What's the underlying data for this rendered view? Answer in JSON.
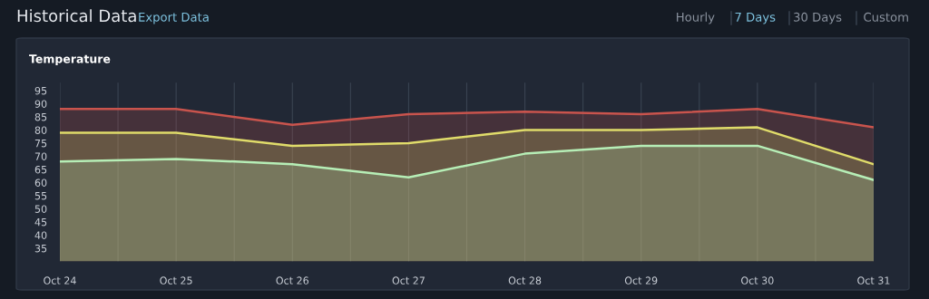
{
  "chart_data": {
    "type": "area",
    "title": "Historical Data",
    "subtitle": "Temperature",
    "annotations": [
      "Export Data",
      "Hourly",
      "7 Days",
      "30 Days",
      "Custom"
    ],
    "categories": [
      "Oct 24",
      "Oct 25",
      "Oct 26",
      "Oct 27",
      "Oct 28",
      "Oct 29",
      "Oct 30",
      "Oct 31"
    ],
    "series": [
      {
        "color": "#c9544d",
        "values": [
          88,
          88,
          82,
          86,
          87,
          86,
          88,
          81
        ]
      },
      {
        "color": "#e0dc6a",
        "values": [
          79,
          79,
          74,
          75,
          80,
          80,
          81,
          67
        ]
      },
      {
        "color": "#b6eeb6",
        "values": [
          68,
          69,
          67,
          62,
          71,
          74,
          74,
          61
        ]
      }
    ],
    "ylim": [
      30,
      98
    ],
    "yticks": [
      35,
      40,
      45,
      50,
      55,
      60,
      65,
      70,
      75,
      80,
      85,
      90,
      95
    ],
    "grid": "x",
    "legend": false
  }
}
